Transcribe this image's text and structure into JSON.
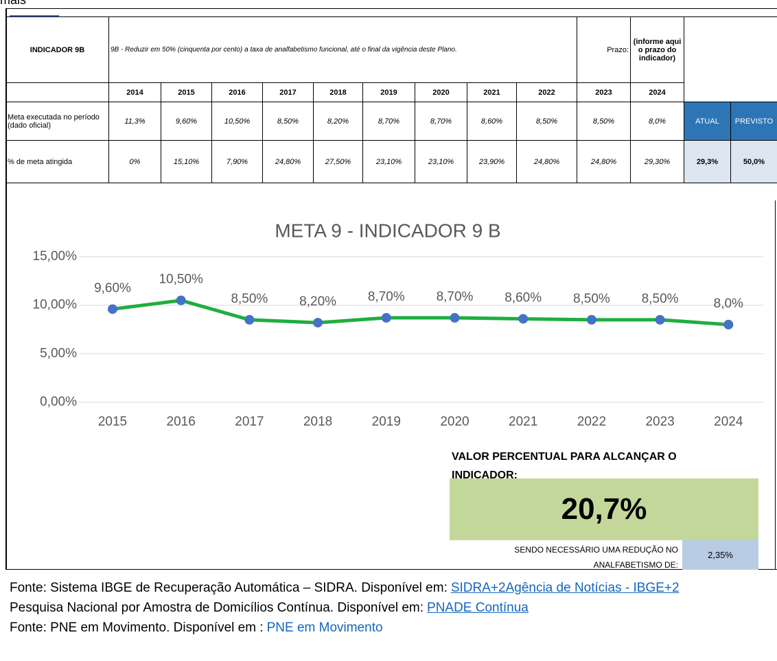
{
  "top_fragment": "mais",
  "table": {
    "header": {
      "label": "INDICADOR 9B",
      "description": "9B - Reduzir em 50% (cinquenta por cento) a taxa de analfabetismo funcional,  até o final da vigência deste Plano.",
      "deadline_label": "Prazo:",
      "deadline_note": "(informe aqui o prazo do indicador)"
    },
    "years": [
      "2014",
      "2015",
      "2016",
      "2017",
      "2018",
      "2019",
      "2020",
      "2021",
      "2022",
      "2023",
      "2024"
    ],
    "rows": [
      {
        "label": "Meta executada no período (dado oficial)",
        "values": [
          "11,3%",
          "9,60%",
          "10,50%",
          "8,50%",
          "8,20%",
          "8,70%",
          "8,70%",
          "8,60%",
          "8,50%",
          "8,50%",
          "8,0%"
        ]
      },
      {
        "label": "% de meta atingida",
        "values": [
          "0%",
          "15,10%",
          "7,90%",
          "24,80%",
          "27,50%",
          "23,10%",
          "23,10%",
          "23,90%",
          "24,80%",
          "24,80%",
          "29,30%"
        ]
      }
    ],
    "summary": {
      "headers": [
        "ATUAL",
        "PREVISTO"
      ],
      "values": [
        "29,3%",
        "50,0%"
      ]
    }
  },
  "chart_data": {
    "type": "line",
    "title": "META 9 - INDICADOR 9 B",
    "categories": [
      "2015",
      "2016",
      "2017",
      "2018",
      "2019",
      "2020",
      "2021",
      "2022",
      "2023",
      "2024"
    ],
    "series": [
      {
        "name": "Meta executada no período",
        "color": "#1fae3f",
        "marker_color": "#4472c4",
        "values": [
          9.6,
          10.5,
          8.5,
          8.2,
          8.7,
          8.7,
          8.6,
          8.5,
          8.5,
          8.0
        ],
        "value_labels": [
          "9,60%",
          "10,50%",
          "8,50%",
          "8,20%",
          "8,70%",
          "8,70%",
          "8,60%",
          "8,50%",
          "8,50%",
          "8,0%"
        ]
      }
    ],
    "ylim": [
      0,
      15
    ],
    "yticks": [
      {
        "value": 0,
        "label": "0,00%"
      },
      {
        "value": 5,
        "label": "5,00%"
      },
      {
        "value": 10,
        "label": "10,00%"
      },
      {
        "value": 15,
        "label": "15,00%"
      }
    ],
    "grid": true
  },
  "target": {
    "title": "VALOR PERCENTUAL PARA ALCANÇAR O INDICADOR:",
    "value": "20,7%",
    "reduction_label": "SENDO NECESSÁRIO UMA REDUÇÃO NO ANALFABETISMO DE:",
    "reduction_value": "2,35%"
  },
  "sources": [
    {
      "text": "Fonte: Sistema IBGE de Recuperação Automática – SIDRA. Disponível em:",
      "link": "SIDRA+2Agência de Notícias - IBGE+2"
    },
    {
      "text": "Pesquisa Nacional por Amostra de Domicílios Contínua. Disponível em:",
      "link": "PNADE Contínua"
    },
    {
      "text": "Fonte: PNE em Movimento. Disponível em :",
      "link": "PNE em Movimento"
    }
  ]
}
